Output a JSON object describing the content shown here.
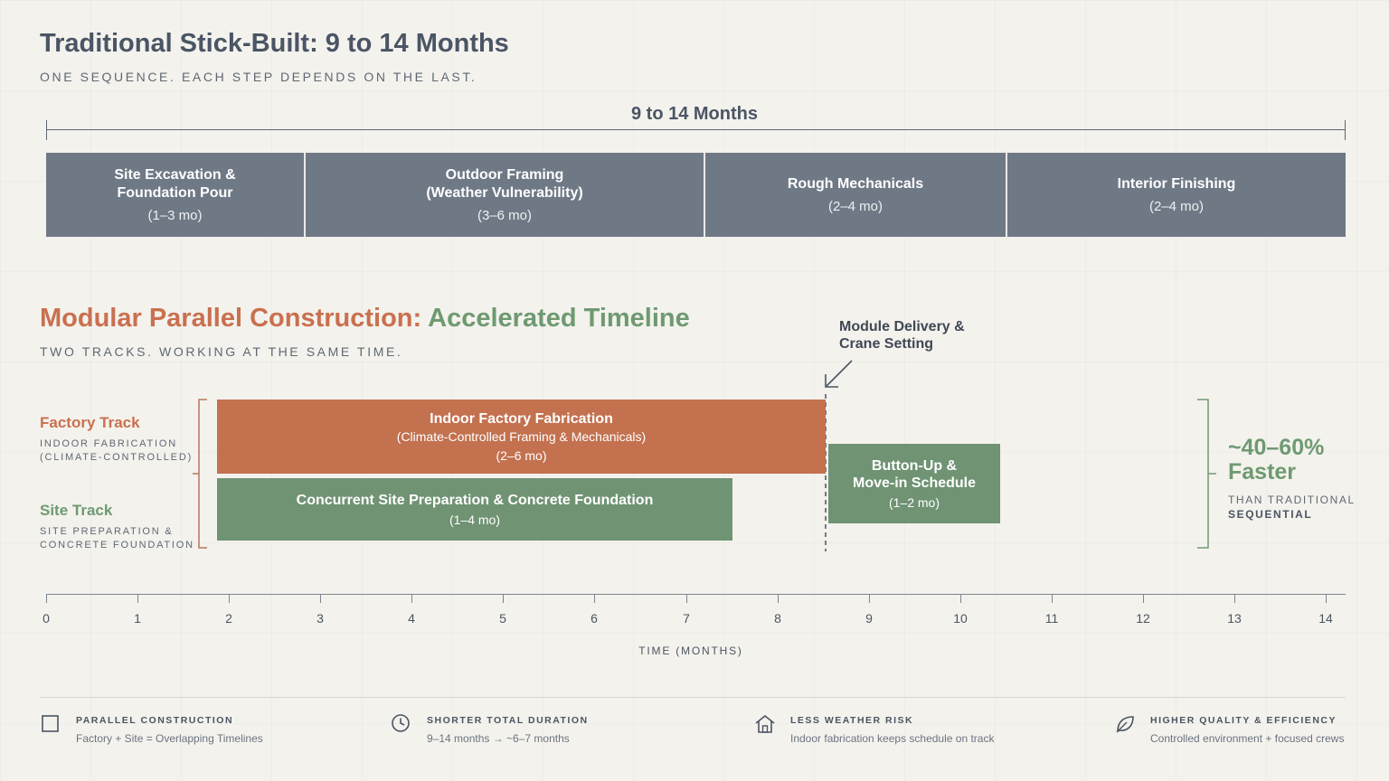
{
  "traditional": {
    "title": "Traditional Stick-Built: 9 to 14 Months",
    "subtitle": "ONE SEQUENCE. EACH STEP DEPENDS ON THE LAST.",
    "span_label": "9 to 14 Months",
    "phases": [
      {
        "title": "Site Excavation &\nFoundation Pour",
        "duration": "(1–3 mo)"
      },
      {
        "title": "Outdoor Framing\n(Weather Vulnerability)",
        "duration": "(3–6 mo)"
      },
      {
        "title": "Rough Mechanicals",
        "duration": "(2–4 mo)"
      },
      {
        "title": "Interior Finishing",
        "duration": "(2–4 mo)"
      }
    ]
  },
  "modular": {
    "title_part1": "Modular Parallel Construction:",
    "title_part2": "Accelerated Timeline",
    "subtitle": "TWO TRACKS. WORKING AT THE SAME TIME.",
    "factory_track": {
      "name": "Factory Track",
      "desc": "INDOOR FABRICATION\n(CLIMATE-CONTROLLED)"
    },
    "site_track": {
      "name": "Site Track",
      "desc": "SITE PREPARATION &\nCONCRETE FOUNDATION"
    },
    "factory_bar": {
      "title": "Indoor Factory Fabrication",
      "sub": "(Climate-Controlled Framing & Mechanicals)",
      "duration": "(2–6 mo)"
    },
    "site_bar": {
      "title": "Concurrent Site Preparation & Concrete Foundation",
      "duration": "(1–4 mo)"
    },
    "button_bar": {
      "title": "Button-Up &\nMove-in Schedule",
      "duration": "(1–2 mo)"
    },
    "delivery_label": "Module Delivery &\nCrane Setting",
    "faster": {
      "value": "~40–60%\nFaster",
      "sub1": "THAN TRADITIONAL",
      "sub2": "SEQUENTIAL"
    }
  },
  "axis": {
    "ticks": [
      "0",
      "1",
      "2",
      "3",
      "4",
      "5",
      "6",
      "7",
      "8",
      "9",
      "10",
      "11",
      "12",
      "13",
      "14"
    ],
    "title": "TIME (MONTHS)"
  },
  "features": [
    {
      "icon": "square-icon",
      "title": "PARALLEL CONSTRUCTION",
      "desc": "Factory + Site = Overlapping Timelines"
    },
    {
      "icon": "clock-icon",
      "title": "SHORTER TOTAL DURATION",
      "desc": "9–14 months → ~6–7 months"
    },
    {
      "icon": "home-icon",
      "title": "LESS WEATHER RISK",
      "desc": "Indoor fabrication keeps schedule on track"
    },
    {
      "icon": "leaf-icon",
      "title": "HIGHER QUALITY & EFFICIENCY",
      "desc": "Controlled environment + focused crews"
    }
  ],
  "colors": {
    "factory": "#c3714f",
    "site": "#6f9373",
    "traditional": "#6f7986"
  }
}
